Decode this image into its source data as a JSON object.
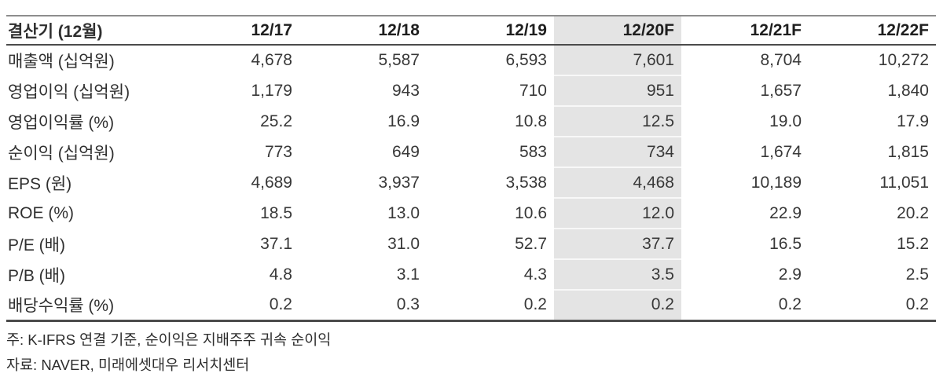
{
  "table": {
    "title_cell": "결산기 (12월)",
    "columns": [
      "12/17",
      "12/18",
      "12/19",
      "12/20F",
      "12/21F",
      "12/22F"
    ],
    "highlighted_column": "12/20F",
    "highlight_color": "#e4e4e4",
    "rows": [
      {
        "label": "매출액 (십억원)",
        "values": [
          "4,678",
          "5,587",
          "6,593",
          "7,601",
          "8,704",
          "10,272"
        ]
      },
      {
        "label": "영업이익 (십억원)",
        "values": [
          "1,179",
          "943",
          "710",
          "951",
          "1,657",
          "1,840"
        ]
      },
      {
        "label": "영업이익률 (%)",
        "values": [
          "25.2",
          "16.9",
          "10.8",
          "12.5",
          "19.0",
          "17.9"
        ]
      },
      {
        "label": "순이익 (십억원)",
        "values": [
          "773",
          "649",
          "583",
          "734",
          "1,674",
          "1,815"
        ]
      },
      {
        "label": "EPS (원)",
        "values": [
          "4,689",
          "3,937",
          "3,538",
          "4,468",
          "10,189",
          "11,051"
        ]
      },
      {
        "label": "ROE (%)",
        "values": [
          "18.5",
          "13.0",
          "10.6",
          "12.0",
          "22.9",
          "20.2"
        ]
      },
      {
        "label": "P/E (배)",
        "values": [
          "37.1",
          "31.0",
          "52.7",
          "37.7",
          "16.5",
          "15.2"
        ]
      },
      {
        "label": "P/B (배)",
        "values": [
          "4.8",
          "3.1",
          "4.3",
          "3.5",
          "2.9",
          "2.5"
        ]
      },
      {
        "label": "배당수익률 (%)",
        "values": [
          "0.2",
          "0.3",
          "0.2",
          "0.2",
          "0.2",
          "0.2"
        ]
      }
    ],
    "notes": [
      "주: K-IFRS 연결 기준, 순이익은 지배주주 귀속 순이익",
      "자료: NAVER, 미래에셋대우 리서치센터"
    ]
  },
  "chart_data": {
    "type": "table",
    "title": "결산기 (12월)",
    "categories": [
      "12/17",
      "12/18",
      "12/19",
      "12/20F",
      "12/21F",
      "12/22F"
    ],
    "series": [
      {
        "name": "매출액 (십억원)",
        "values": [
          4678,
          5587,
          6593,
          7601,
          8704,
          10272
        ]
      },
      {
        "name": "영업이익 (십억원)",
        "values": [
          1179,
          943,
          710,
          951,
          1657,
          1840
        ]
      },
      {
        "name": "영업이익률 (%)",
        "values": [
          25.2,
          16.9,
          10.8,
          12.5,
          19.0,
          17.9
        ]
      },
      {
        "name": "순이익 (십억원)",
        "values": [
          773,
          649,
          583,
          734,
          1674,
          1815
        ]
      },
      {
        "name": "EPS (원)",
        "values": [
          4689,
          3937,
          3538,
          4468,
          10189,
          11051
        ]
      },
      {
        "name": "ROE (%)",
        "values": [
          18.5,
          13.0,
          10.6,
          12.0,
          22.9,
          20.2
        ]
      },
      {
        "name": "P/E (배)",
        "values": [
          37.1,
          31.0,
          52.7,
          37.7,
          16.5,
          15.2
        ]
      },
      {
        "name": "P/B (배)",
        "values": [
          4.8,
          3.1,
          4.3,
          3.5,
          2.9,
          2.5
        ]
      },
      {
        "name": "배당수익률 (%)",
        "values": [
          0.2,
          0.3,
          0.2,
          0.2,
          0.2,
          0.2
        ]
      }
    ]
  }
}
